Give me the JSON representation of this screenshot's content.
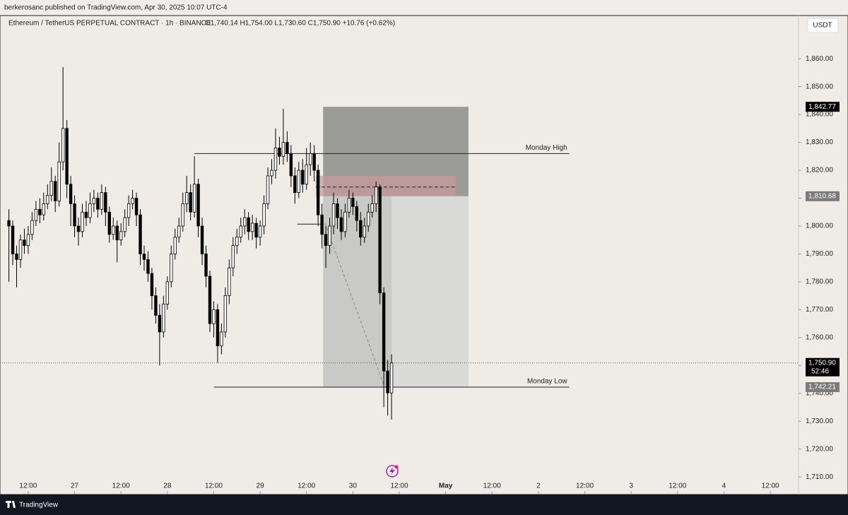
{
  "header": {
    "publisher": "berkerosanc published on TradingView.com, Apr 30, 2025 10:07 UTC-4",
    "brand": "TradingView",
    "currency_button": "USDT"
  },
  "chart_data": {
    "type": "candlestick",
    "title": "Ethereum / TetherUS PERPETUAL CONTRACT · 1h · BINANCE",
    "ohlc_legend": "O1,740.14 H1,754.00 L1,730.60 C1,750.90 +10.76 (+0.62%)",
    "up_color": "#ffffff",
    "down_color": "#000000",
    "x": [
      7,
      8,
      9,
      10,
      11,
      12,
      13,
      14,
      15,
      16,
      17,
      18,
      19,
      20,
      21,
      22,
      23,
      24,
      25,
      26,
      27,
      28,
      29,
      30,
      31,
      32,
      33,
      34,
      35,
      36,
      37,
      38,
      39,
      40,
      41,
      42,
      43,
      44,
      45,
      46,
      47,
      48,
      49,
      50,
      51,
      52,
      53,
      54,
      55,
      56,
      57,
      58,
      59,
      60,
      61,
      62,
      63,
      64,
      65,
      66,
      67,
      68,
      69,
      70,
      71,
      72,
      73,
      74,
      75,
      76,
      77,
      78,
      79,
      80,
      81,
      82,
      83,
      84,
      85,
      86,
      87,
      88,
      89,
      90,
      91,
      92,
      93,
      94,
      95,
      96,
      97,
      98,
      99,
      100,
      101,
      102,
      103,
      104,
      105,
      106
    ],
    "open": [
      1802,
      1800,
      1790,
      1788,
      1795,
      1793,
      1797,
      1802,
      1806,
      1804,
      1808,
      1811,
      1816,
      1809,
      1823,
      1835,
      1815,
      1808,
      1800,
      1798,
      1805,
      1803,
      1808,
      1810,
      1806,
      1812,
      1805,
      1797,
      1800,
      1795,
      1798,
      1803,
      1808,
      1810,
      1804,
      1790,
      1788,
      1783,
      1775,
      1768,
      1762,
      1772,
      1780,
      1790,
      1796,
      1800,
      1808,
      1812,
      1805,
      1815,
      1800,
      1790,
      1782,
      1765,
      1770,
      1757,
      1762,
      1775,
      1785,
      1793,
      1796,
      1800,
      1803,
      1798,
      1801,
      1796,
      1800,
      1808,
      1818,
      1820,
      1828,
      1825,
      1830,
      1826,
      1818,
      1812,
      1820,
      1815,
      1822,
      1826,
      1820,
      1804,
      1797,
      1793,
      1800,
      1808,
      1803,
      1798,
      1805,
      1810,
      1807,
      1802,
      1796,
      1800,
      1805,
      1808,
      1814,
      1776,
      1748,
      1740.14
    ],
    "high": [
      1806,
      1802,
      1793,
      1797,
      1799,
      1800,
      1805,
      1809,
      1810,
      1812,
      1815,
      1821,
      1818,
      1830,
      1857,
      1838,
      1818,
      1811,
      1803,
      1808,
      1809,
      1812,
      1813,
      1812,
      1815,
      1814,
      1807,
      1803,
      1802,
      1801,
      1806,
      1811,
      1813,
      1812,
      1806,
      1793,
      1791,
      1785,
      1778,
      1772,
      1775,
      1782,
      1793,
      1799,
      1803,
      1812,
      1818,
      1815,
      1825,
      1817,
      1803,
      1793,
      1784,
      1773,
      1772,
      1765,
      1778,
      1788,
      1796,
      1799,
      1803,
      1806,
      1805,
      1804,
      1803,
      1802,
      1811,
      1821,
      1824,
      1835,
      1832,
      1842,
      1834,
      1829,
      1821,
      1823,
      1824,
      1828,
      1830,
      1829,
      1822,
      1808,
      1800,
      1803,
      1812,
      1810,
      1806,
      1808,
      1813,
      1812,
      1809,
      1805,
      1803,
      1808,
      1811,
      1816,
      1815,
      1778,
      1752,
      1754
    ],
    "low": [
      1780,
      1786,
      1778,
      1785,
      1790,
      1790,
      1795,
      1800,
      1801,
      1802,
      1806,
      1809,
      1805,
      1807,
      1820,
      1810,
      1800,
      1796,
      1793,
      1796,
      1800,
      1801,
      1805,
      1803,
      1804,
      1800,
      1794,
      1795,
      1787,
      1793,
      1796,
      1800,
      1806,
      1800,
      1786,
      1784,
      1780,
      1770,
      1765,
      1750,
      1760,
      1770,
      1778,
      1788,
      1794,
      1798,
      1805,
      1802,
      1803,
      1796,
      1786,
      1778,
      1762,
      1760,
      1751,
      1754,
      1760,
      1772,
      1782,
      1790,
      1794,
      1797,
      1795,
      1795,
      1792,
      1793,
      1797,
      1806,
      1815,
      1817,
      1822,
      1822,
      1823,
      1814,
      1808,
      1810,
      1812,
      1813,
      1818,
      1816,
      1800,
      1792,
      1785,
      1790,
      1797,
      1799,
      1795,
      1796,
      1803,
      1804,
      1798,
      1793,
      1794,
      1798,
      1803,
      1805,
      1772,
      1735,
      1732,
      1730.6
    ],
    "close": [
      1800,
      1790,
      1788,
      1795,
      1793,
      1797,
      1802,
      1806,
      1804,
      1808,
      1811,
      1816,
      1809,
      1823,
      1835,
      1815,
      1808,
      1800,
      1798,
      1805,
      1803,
      1808,
      1810,
      1806,
      1812,
      1805,
      1797,
      1800,
      1795,
      1798,
      1803,
      1808,
      1810,
      1804,
      1790,
      1788,
      1783,
      1775,
      1768,
      1762,
      1772,
      1780,
      1790,
      1796,
      1800,
      1808,
      1812,
      1805,
      1815,
      1800,
      1790,
      1782,
      1765,
      1770,
      1757,
      1762,
      1775,
      1785,
      1793,
      1796,
      1800,
      1803,
      1798,
      1801,
      1796,
      1800,
      1808,
      1818,
      1820,
      1828,
      1825,
      1830,
      1826,
      1818,
      1812,
      1820,
      1815,
      1822,
      1826,
      1820,
      1804,
      1797,
      1793,
      1800,
      1808,
      1803,
      1798,
      1805,
      1810,
      1807,
      1802,
      1796,
      1800,
      1805,
      1808,
      1814,
      1776,
      1748,
      1740.14,
      1750.9
    ],
    "xlim": [
      4.7,
      211.3
    ],
    "xticks": [
      {
        "value": 12,
        "label": "12:00"
      },
      {
        "value": 24,
        "label": "27"
      },
      {
        "value": 36,
        "label": "12:00"
      },
      {
        "value": 48,
        "label": "28"
      },
      {
        "value": 60,
        "label": "12:00"
      },
      {
        "value": 72,
        "label": "29"
      },
      {
        "value": 84,
        "label": "12:00"
      },
      {
        "value": 96,
        "label": "30"
      },
      {
        "value": 108,
        "label": "12:00"
      },
      {
        "value": 120,
        "label": "May"
      },
      {
        "value": 132,
        "label": "12:00"
      },
      {
        "value": 144,
        "label": "2"
      },
      {
        "value": 156,
        "label": "12:00"
      },
      {
        "value": 168,
        "label": "3"
      },
      {
        "value": 180,
        "label": "12:00"
      },
      {
        "value": 192,
        "label": "4"
      },
      {
        "value": 204,
        "label": "12:00"
      }
    ],
    "ylim": [
      1703.7,
      1875.5
    ],
    "yticks": [
      {
        "value": 1710,
        "label": "1,710.00"
      },
      {
        "value": 1720,
        "label": "1,720.00"
      },
      {
        "value": 1730,
        "label": "1,730.00"
      },
      {
        "value": 1740,
        "label": "1,740.00"
      },
      {
        "value": 1750,
        "label": "1,750.00"
      },
      {
        "value": 1760,
        "label": "1,760.00"
      },
      {
        "value": 1770,
        "label": "1,770.00"
      },
      {
        "value": 1780,
        "label": "1,780.00"
      },
      {
        "value": 1790,
        "label": "1,790.00"
      },
      {
        "value": 1800,
        "label": "1,800.00"
      },
      {
        "value": 1810,
        "label": "1,810.00"
      },
      {
        "value": 1820,
        "label": "1,820.00"
      },
      {
        "value": 1830,
        "label": "1,830.00"
      },
      {
        "value": 1840,
        "label": "1,840.00"
      },
      {
        "value": 1850,
        "label": "1,850.00"
      },
      {
        "value": 1860,
        "label": "1,860.00"
      }
    ],
    "levels": [
      {
        "label": "Monday High",
        "price": 1826,
        "x_start": 55,
        "x_end": 152
      },
      {
        "label": "Monday Low",
        "price": 1742.21,
        "x_start": 60,
        "x_end": 152
      }
    ],
    "range_line": {
      "price": 1800.7,
      "x_start": 81.6,
      "x_end": 88.3
    },
    "position": {
      "top": 1842.77,
      "entry": 1810.68,
      "bottom": 1742.21,
      "x_start": 88.3,
      "x_end": 125.9
    },
    "zone": {
      "top": 1818,
      "bottom": 1810.7,
      "mid": 1814,
      "x_start": 86.4,
      "x_end": 122.6
    },
    "projection": {
      "x": [
        88.8,
        104
      ],
      "y": [
        1801,
        1743
      ]
    },
    "last_price": {
      "value": 1750.9,
      "label": "1,750.90",
      "countdown": "52:46"
    },
    "price_tags": [
      {
        "value": 1842.77,
        "label": "1,842.77",
        "color": "#000000"
      },
      {
        "value": 1810.68,
        "label": "1,810.68",
        "color": "#7b7b7b"
      },
      {
        "value": 1742.21,
        "label": "1,742.21",
        "color": "#7b7b7b"
      }
    ]
  }
}
